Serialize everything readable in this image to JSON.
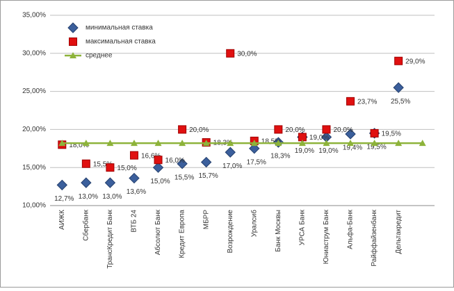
{
  "chart_data": {
    "type": "scatter-line",
    "categories": [
      "АИЖК",
      "Сбербанк",
      "ТрансКредит Банк",
      "ВТБ 24",
      "Абсолют Банк",
      "Кредит Европа",
      "МБРР",
      "Возрождение",
      "Уралсиб",
      "Банк Москвы",
      "УРСА Банк",
      "Юниаструм Банк",
      "Альфа-Банк",
      "Райффайзенбанк",
      "Дельтакредит",
      null
    ],
    "series": [
      {
        "name": "минимальная ставка",
        "color": "#3b5f9c",
        "marker": "diamond",
        "values": [
          12.7,
          13.0,
          13.0,
          13.6,
          15.0,
          15.5,
          15.7,
          17.0,
          17.5,
          18.3,
          19.0,
          19.0,
          19.4,
          19.5,
          25.5
        ],
        "value_labels": [
          "12,7%",
          "13,0%",
          "13,0%",
          "13,6%",
          "15,0%",
          "15,5%",
          "15,7%",
          "17,0%",
          "17,5%",
          "18,3%",
          "19,0%",
          "19,0%",
          "19,4%",
          "19,5%",
          "25,5%"
        ]
      },
      {
        "name": "максимальная ставка",
        "color": "#e01010",
        "marker": "square",
        "values": [
          18.0,
          15.5,
          15.0,
          16.6,
          16.0,
          20.0,
          18.3,
          30.0,
          18.5,
          20.0,
          19.0,
          20.0,
          23.7,
          19.5,
          29.0
        ],
        "value_labels": [
          "18,0%",
          "15,5%",
          "15,0%",
          "16,6%",
          "16,0%",
          "20,0%",
          "18,3%",
          "30,0%",
          "18,5%",
          "20,0%",
          "19,0%",
          "20,0%",
          "23,7%",
          "19,5%",
          "29,0%"
        ]
      },
      {
        "name": "среднее",
        "color": "#8db33a",
        "marker": "triangle",
        "values": [
          18.2,
          18.2,
          18.2,
          18.2,
          18.2,
          18.2,
          18.2,
          18.2,
          18.2,
          18.2,
          18.2,
          18.2,
          18.2,
          18.2,
          18.2,
          18.2
        ]
      }
    ],
    "ylim": [
      10,
      35
    ],
    "yticks": [
      {
        "value": 10,
        "label": "10,00%"
      },
      {
        "value": 15,
        "label": "15,00%"
      },
      {
        "value": 20,
        "label": "20,00%"
      },
      {
        "value": 25,
        "label": "25,00%"
      },
      {
        "value": 30,
        "label": "30,00%"
      },
      {
        "value": 35,
        "label": "35,00%"
      }
    ],
    "grid": true,
    "legend": "top-left"
  }
}
